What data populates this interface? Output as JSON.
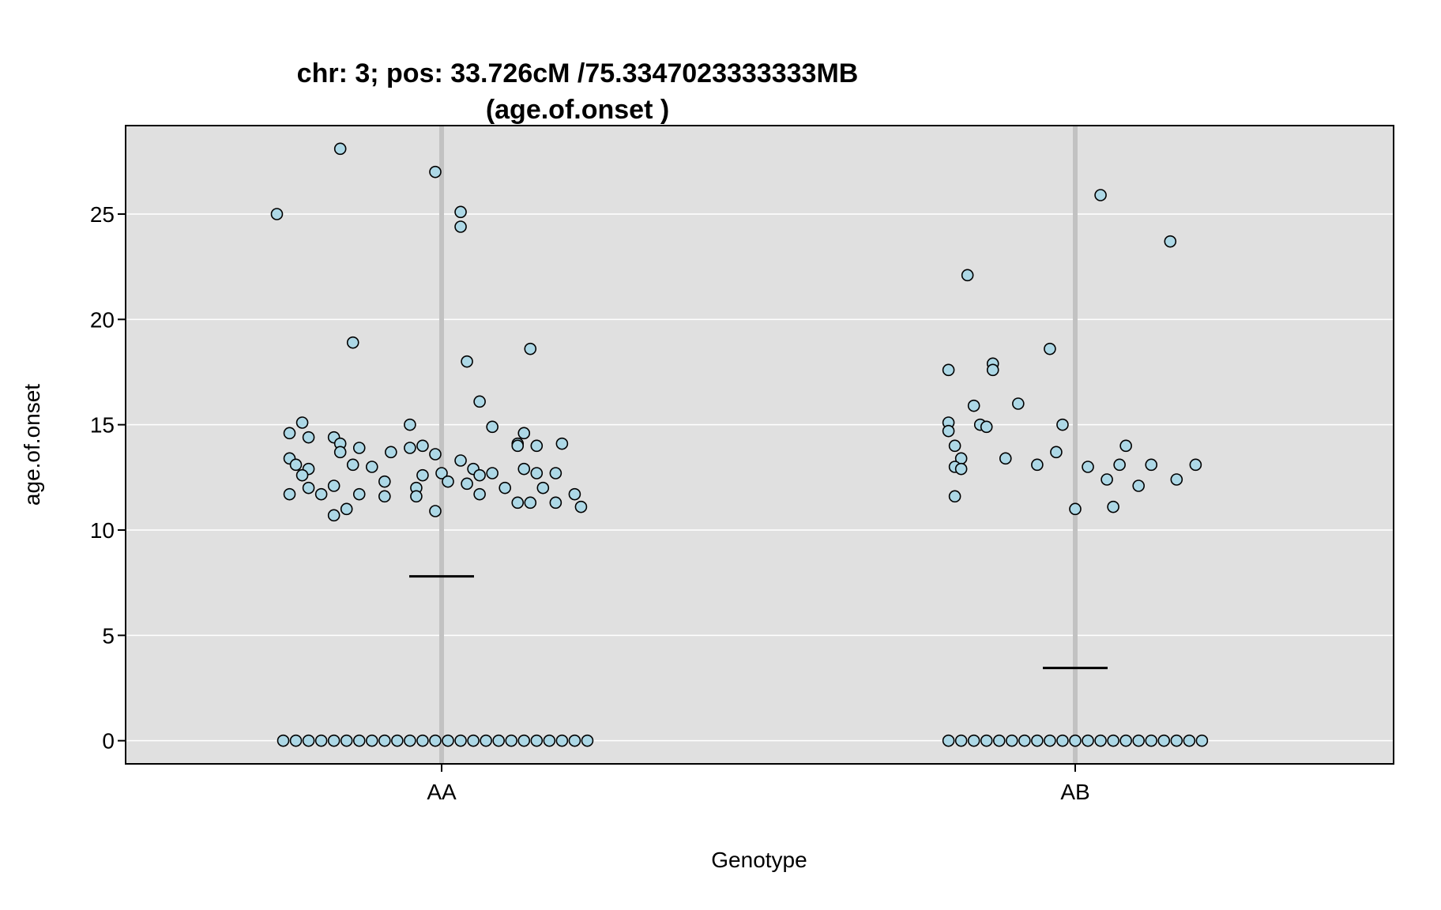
{
  "chart_data": {
    "type": "scatter",
    "title_line1": "chr: 3; pos: 33.726cM /75.3347023333333MB",
    "title_line2": "(age.of.onset )",
    "xlabel": "Genotype",
    "ylabel": "age.of.onset",
    "categories": [
      "AA",
      "AB"
    ],
    "ylim": [
      -1.1,
      29.2
    ],
    "yticks": [
      0,
      5,
      10,
      15,
      20,
      25
    ],
    "grid": true,
    "colors": {
      "panel_bg": "#e0e0e0",
      "gridline": "#ffffff",
      "category_line": "#c2c2c2",
      "point_fill": "#add8e6",
      "point_stroke": "#000000",
      "mean_line": "#000000",
      "frame": "#000000"
    },
    "means": [
      {
        "category": "AA",
        "value": 7.8
      },
      {
        "category": "AB",
        "value": 3.45
      }
    ],
    "series": [
      {
        "category": "AA",
        "points": [
          {
            "x": -0.16,
            "y": 28.1
          },
          {
            "x": -0.01,
            "y": 27.0
          },
          {
            "x": -0.26,
            "y": 25.0
          },
          {
            "x": 0.03,
            "y": 25.1
          },
          {
            "x": 0.03,
            "y": 24.4
          },
          {
            "x": -0.14,
            "y": 18.9
          },
          {
            "x": 0.04,
            "y": 18.0
          },
          {
            "x": 0.14,
            "y": 18.6
          },
          {
            "x": 0.06,
            "y": 16.1
          },
          {
            "x": -0.22,
            "y": 15.1
          },
          {
            "x": -0.05,
            "y": 15.0
          },
          {
            "x": 0.08,
            "y": 14.9
          },
          {
            "x": -0.24,
            "y": 14.6
          },
          {
            "x": -0.21,
            "y": 14.4
          },
          {
            "x": -0.17,
            "y": 14.4
          },
          {
            "x": 0.13,
            "y": 14.6
          },
          {
            "x": -0.16,
            "y": 14.1
          },
          {
            "x": 0.12,
            "y": 14.1
          },
          {
            "x": 0.12,
            "y": 14.0
          },
          {
            "x": 0.15,
            "y": 14.0
          },
          {
            "x": 0.19,
            "y": 14.1
          },
          {
            "x": -0.13,
            "y": 13.9
          },
          {
            "x": -0.03,
            "y": 14.0
          },
          {
            "x": -0.05,
            "y": 13.9
          },
          {
            "x": -0.24,
            "y": 13.4
          },
          {
            "x": -0.16,
            "y": 13.7
          },
          {
            "x": -0.08,
            "y": 13.7
          },
          {
            "x": -0.23,
            "y": 13.1
          },
          {
            "x": -0.14,
            "y": 13.1
          },
          {
            "x": -0.01,
            "y": 13.6
          },
          {
            "x": 0.03,
            "y": 13.3
          },
          {
            "x": -0.21,
            "y": 12.9
          },
          {
            "x": -0.11,
            "y": 13.0
          },
          {
            "x": 0.05,
            "y": 12.9
          },
          {
            "x": 0.08,
            "y": 12.7
          },
          {
            "x": 0.13,
            "y": 12.9
          },
          {
            "x": 0.15,
            "y": 12.7
          },
          {
            "x": 0.18,
            "y": 12.7
          },
          {
            "x": -0.22,
            "y": 12.6
          },
          {
            "x": -0.03,
            "y": 12.6
          },
          {
            "x": 0.0,
            "y": 12.7
          },
          {
            "x": 0.06,
            "y": 12.6
          },
          {
            "x": 0.04,
            "y": 12.2
          },
          {
            "x": -0.21,
            "y": 12.0
          },
          {
            "x": -0.17,
            "y": 12.1
          },
          {
            "x": -0.09,
            "y": 12.3
          },
          {
            "x": -0.04,
            "y": 12.0
          },
          {
            "x": 0.01,
            "y": 12.3
          },
          {
            "x": 0.1,
            "y": 12.0
          },
          {
            "x": 0.16,
            "y": 12.0
          },
          {
            "x": -0.24,
            "y": 11.7
          },
          {
            "x": -0.19,
            "y": 11.7
          },
          {
            "x": -0.13,
            "y": 11.7
          },
          {
            "x": -0.09,
            "y": 11.6
          },
          {
            "x": -0.04,
            "y": 11.6
          },
          {
            "x": 0.06,
            "y": 11.7
          },
          {
            "x": 0.12,
            "y": 11.3
          },
          {
            "x": 0.14,
            "y": 11.3
          },
          {
            "x": 0.18,
            "y": 11.3
          },
          {
            "x": 0.21,
            "y": 11.7
          },
          {
            "x": -0.15,
            "y": 11.0
          },
          {
            "x": -0.17,
            "y": 10.7
          },
          {
            "x": -0.01,
            "y": 10.9
          },
          {
            "x": 0.22,
            "y": 11.1
          },
          {
            "x": -0.25,
            "y": 0
          },
          {
            "x": -0.23,
            "y": 0
          },
          {
            "x": -0.21,
            "y": 0
          },
          {
            "x": -0.19,
            "y": 0
          },
          {
            "x": -0.17,
            "y": 0
          },
          {
            "x": -0.15,
            "y": 0
          },
          {
            "x": -0.13,
            "y": 0
          },
          {
            "x": -0.11,
            "y": 0
          },
          {
            "x": -0.09,
            "y": 0
          },
          {
            "x": -0.07,
            "y": 0
          },
          {
            "x": -0.05,
            "y": 0
          },
          {
            "x": -0.03,
            "y": 0
          },
          {
            "x": -0.01,
            "y": 0
          },
          {
            "x": 0.01,
            "y": 0
          },
          {
            "x": 0.03,
            "y": 0
          },
          {
            "x": 0.05,
            "y": 0
          },
          {
            "x": 0.07,
            "y": 0
          },
          {
            "x": 0.09,
            "y": 0
          },
          {
            "x": 0.11,
            "y": 0
          },
          {
            "x": 0.13,
            "y": 0
          },
          {
            "x": 0.15,
            "y": 0
          },
          {
            "x": 0.17,
            "y": 0
          },
          {
            "x": 0.19,
            "y": 0
          },
          {
            "x": 0.21,
            "y": 0
          },
          {
            "x": 0.23,
            "y": 0
          }
        ]
      },
      {
        "category": "AB",
        "points": [
          {
            "x": 0.04,
            "y": 25.9
          },
          {
            "x": 0.15,
            "y": 23.7
          },
          {
            "x": -0.17,
            "y": 22.1
          },
          {
            "x": -0.04,
            "y": 18.6
          },
          {
            "x": -0.13,
            "y": 17.9
          },
          {
            "x": -0.2,
            "y": 17.6
          },
          {
            "x": -0.13,
            "y": 17.6
          },
          {
            "x": -0.09,
            "y": 16.0
          },
          {
            "x": -0.16,
            "y": 15.9
          },
          {
            "x": -0.2,
            "y": 15.1
          },
          {
            "x": -0.15,
            "y": 15.0
          },
          {
            "x": -0.14,
            "y": 14.9
          },
          {
            "x": -0.02,
            "y": 15.0
          },
          {
            "x": -0.2,
            "y": 14.7
          },
          {
            "x": -0.19,
            "y": 14.0
          },
          {
            "x": 0.08,
            "y": 14.0
          },
          {
            "x": -0.03,
            "y": 13.7
          },
          {
            "x": -0.18,
            "y": 13.4
          },
          {
            "x": -0.11,
            "y": 13.4
          },
          {
            "x": -0.06,
            "y": 13.1
          },
          {
            "x": 0.02,
            "y": 13.0
          },
          {
            "x": 0.07,
            "y": 13.1
          },
          {
            "x": 0.12,
            "y": 13.1
          },
          {
            "x": 0.19,
            "y": 13.1
          },
          {
            "x": -0.19,
            "y": 13.0
          },
          {
            "x": -0.18,
            "y": 12.9
          },
          {
            "x": 0.05,
            "y": 12.4
          },
          {
            "x": 0.16,
            "y": 12.4
          },
          {
            "x": 0.1,
            "y": 12.1
          },
          {
            "x": -0.19,
            "y": 11.6
          },
          {
            "x": 0.06,
            "y": 11.1
          },
          {
            "x": 0.0,
            "y": 11.0
          },
          {
            "x": -0.2,
            "y": 0
          },
          {
            "x": -0.18,
            "y": 0
          },
          {
            "x": -0.16,
            "y": 0
          },
          {
            "x": -0.14,
            "y": 0
          },
          {
            "x": -0.12,
            "y": 0
          },
          {
            "x": -0.1,
            "y": 0
          },
          {
            "x": -0.08,
            "y": 0
          },
          {
            "x": -0.06,
            "y": 0
          },
          {
            "x": -0.04,
            "y": 0
          },
          {
            "x": -0.02,
            "y": 0
          },
          {
            "x": 0.0,
            "y": 0
          },
          {
            "x": 0.02,
            "y": 0
          },
          {
            "x": 0.04,
            "y": 0
          },
          {
            "x": 0.06,
            "y": 0
          },
          {
            "x": 0.08,
            "y": 0
          },
          {
            "x": 0.1,
            "y": 0
          },
          {
            "x": 0.12,
            "y": 0
          },
          {
            "x": 0.14,
            "y": 0
          },
          {
            "x": 0.16,
            "y": 0
          },
          {
            "x": 0.18,
            "y": 0
          },
          {
            "x": 0.2,
            "y": 0
          }
        ]
      }
    ]
  }
}
